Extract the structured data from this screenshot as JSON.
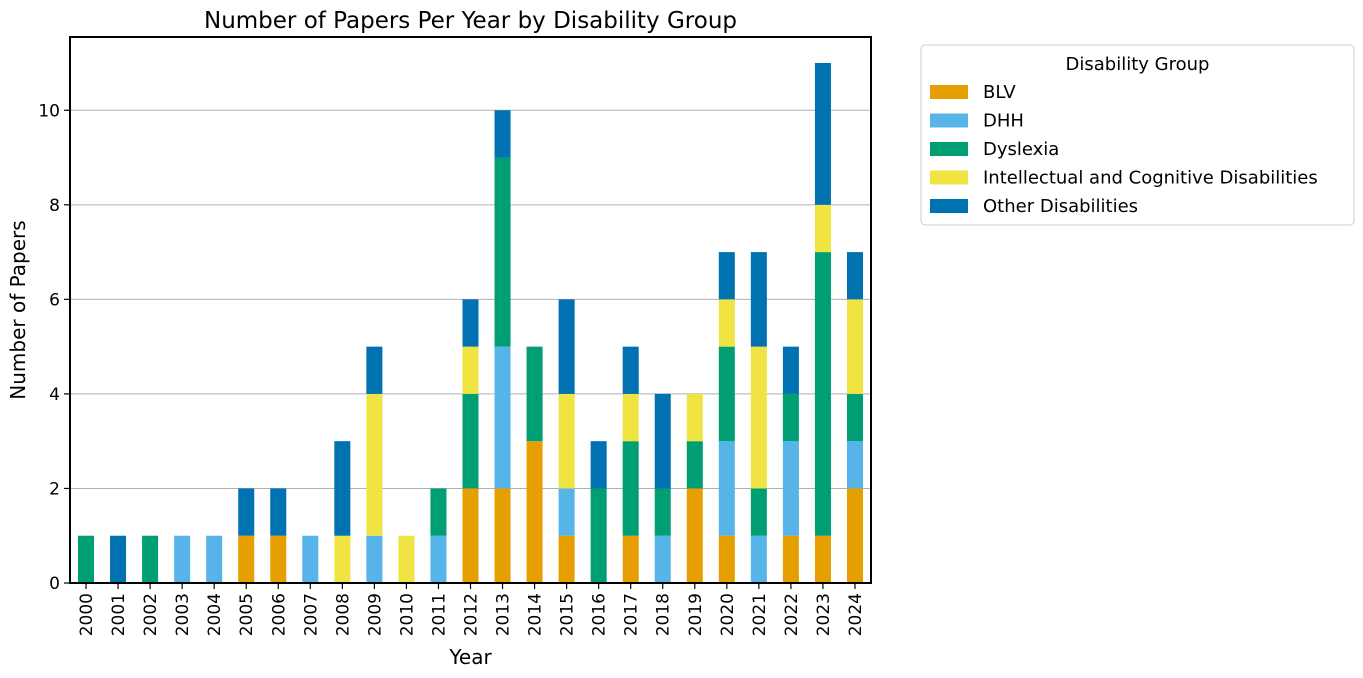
{
  "chart_data": {
    "type": "bar",
    "stacked": true,
    "title": "Number of Papers Per Year by Disability Group",
    "xlabel": "Year",
    "ylabel": "Number of Papers",
    "ylim": [
      0,
      11.55
    ],
    "yticks": [
      0,
      2,
      4,
      6,
      8,
      10
    ],
    "grid": "horizontal",
    "legend": {
      "title": "Disability Group",
      "placement": "outside-top-right"
    },
    "categories": [
      "2000",
      "2001",
      "2002",
      "2003",
      "2004",
      "2005",
      "2006",
      "2007",
      "2008",
      "2009",
      "2010",
      "2011",
      "2012",
      "2013",
      "2014",
      "2015",
      "2016",
      "2017",
      "2018",
      "2019",
      "2020",
      "2021",
      "2022",
      "2023",
      "2024"
    ],
    "series": [
      {
        "name": "BLV",
        "color": "#E69F00",
        "values": [
          0,
          0,
          0,
          0,
          0,
          1,
          1,
          0,
          0,
          0,
          0,
          0,
          2,
          2,
          3,
          1,
          0,
          1,
          0,
          2,
          1,
          0,
          1,
          1,
          2
        ]
      },
      {
        "name": "DHH",
        "color": "#56B4E9",
        "values": [
          0,
          0,
          0,
          1,
          1,
          0,
          0,
          1,
          0,
          1,
          0,
          1,
          0,
          3,
          0,
          1,
          0,
          0,
          1,
          0,
          2,
          1,
          2,
          0,
          1
        ]
      },
      {
        "name": "Dyslexia",
        "color": "#009E73",
        "values": [
          1,
          0,
          1,
          0,
          0,
          0,
          0,
          0,
          0,
          0,
          0,
          1,
          2,
          4,
          2,
          0,
          2,
          2,
          1,
          1,
          2,
          1,
          1,
          6,
          1
        ]
      },
      {
        "name": "Intellectual and Cognitive Disabilities",
        "color": "#F0E442",
        "values": [
          0,
          0,
          0,
          0,
          0,
          0,
          0,
          0,
          1,
          3,
          1,
          0,
          1,
          0,
          0,
          2,
          0,
          1,
          0,
          1,
          1,
          3,
          0,
          1,
          2
        ]
      },
      {
        "name": "Other Disabilities",
        "color": "#0072B2",
        "values": [
          0,
          1,
          0,
          0,
          0,
          1,
          1,
          0,
          2,
          1,
          0,
          0,
          1,
          1,
          0,
          2,
          1,
          1,
          2,
          0,
          1,
          2,
          1,
          3,
          1
        ]
      }
    ]
  }
}
